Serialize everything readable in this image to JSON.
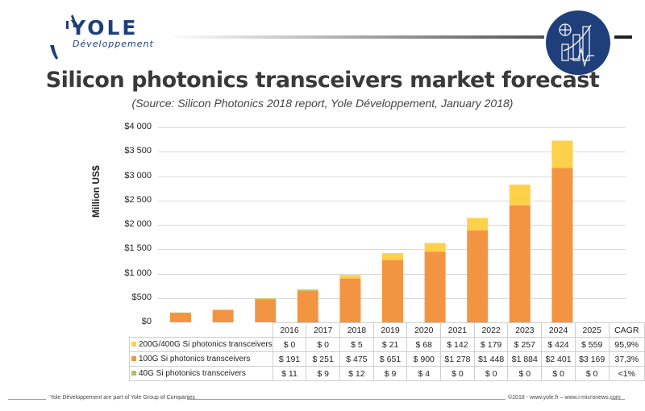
{
  "header": {
    "logo_text": "YOLE",
    "logo_subtext": "Développement"
  },
  "title": "Silicon photonics transceivers market forecast",
  "subtitle": "(Source: Silicon Photonics 2018 report, Yole Développement, January 2018)",
  "chart_data": {
    "type": "bar",
    "stacked": true,
    "ylabel": "Million US$",
    "ylim": [
      0,
      4000
    ],
    "yticks": [
      "$0",
      "$500",
      "$1 000",
      "$1 500",
      "$2 000",
      "$2 500",
      "$3 000",
      "$3 500",
      "$4 000"
    ],
    "grid": true,
    "categories": [
      "2016",
      "2017",
      "2018",
      "2019",
      "2020",
      "2021",
      "2022",
      "2023",
      "2024",
      "2025"
    ],
    "cagr_header": "CAGR",
    "series": [
      {
        "name": "200G/400G Si photonics transceivers",
        "color": "#FFD04A",
        "values": [
          0,
          0,
          5,
          21,
          68,
          142,
          179,
          257,
          424,
          559
        ],
        "labels": [
          "$ 0",
          "$ 0",
          "$ 5",
          "$ 21",
          "$ 68",
          "$ 142",
          "$ 179",
          "$ 257",
          "$ 424",
          "$ 559"
        ],
        "cagr": "95,9%"
      },
      {
        "name": "100G Si photonics transceivers",
        "color": "#F39443",
        "values": [
          191,
          251,
          475,
          651,
          900,
          1278,
          1448,
          1884,
          2401,
          3169
        ],
        "labels": [
          "$ 191",
          "$ 251",
          "$ 475",
          "$ 651",
          "$ 900",
          "$1 278",
          "$1 448",
          "$1 884",
          "$2 401",
          "$3 169"
        ],
        "cagr": "37,3%"
      },
      {
        "name": "40G Si photonics transceivers",
        "color": "#A9C94A",
        "values": [
          11,
          9,
          12,
          9,
          4,
          0,
          0,
          0,
          0,
          0
        ],
        "labels": [
          "$ 11",
          "$ 9",
          "$ 12",
          "$ 9",
          "$ 4",
          "$ 0",
          "$ 0",
          "$ 0",
          "$ 0",
          "$ 0"
        ],
        "cagr": "<1%"
      }
    ],
    "stack_order_bottom_to_top": [
      "100G Si photonics transceivers",
      "40G Si photonics transceivers",
      "200G/400G Si photonics transceivers"
    ]
  },
  "footer": {
    "left": "Yole Développement are part of Yole Group of Companies",
    "right": "©2018 - www.yole.fr – www.i-micronews.com"
  }
}
